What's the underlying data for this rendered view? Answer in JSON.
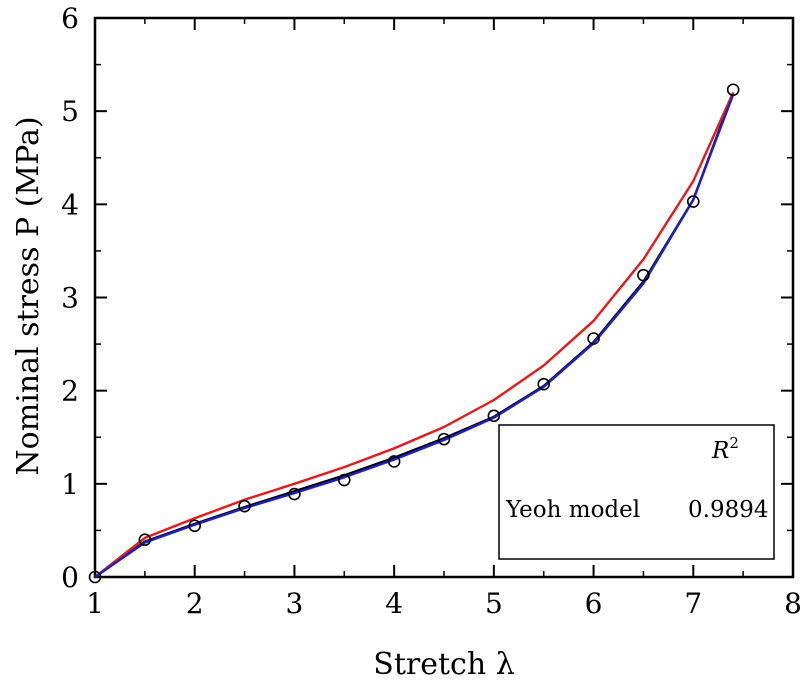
{
  "chart_data": {
    "type": "line",
    "title": "",
    "xlabel": "Stretch λ",
    "ylabel": "Nominal stress P (MPa)",
    "xlim": [
      1,
      8
    ],
    "ylim": [
      0,
      6
    ],
    "xticks": [
      "1",
      "2",
      "3",
      "4",
      "5",
      "6",
      "7",
      "8"
    ],
    "yticks": [
      "0",
      "1",
      "2",
      "3",
      "4",
      "5",
      "6"
    ],
    "grid": false,
    "series": [
      {
        "name": "",
        "kind": "markers",
        "marker": "open-circle",
        "color": "#000000",
        "x": [
          1.0,
          1.5,
          2.0,
          2.5,
          3.0,
          3.5,
          4.0,
          4.5,
          5.0,
          5.5,
          6.0,
          6.5,
          7.0,
          7.4
        ],
        "y": [
          0.0,
          0.4,
          0.55,
          0.76,
          0.89,
          1.04,
          1.24,
          1.48,
          1.73,
          2.07,
          2.56,
          3.24,
          4.03,
          5.23
        ]
      },
      {
        "name": "",
        "kind": "line",
        "color": "#000000",
        "x": [
          1.0,
          1.5,
          2.0,
          2.5,
          3.0,
          3.5,
          4.0,
          4.5,
          5.0,
          5.5,
          6.0,
          6.5,
          7.0,
          7.4
        ],
        "y": [
          0.0,
          0.38,
          0.57,
          0.75,
          0.92,
          1.09,
          1.28,
          1.49,
          1.72,
          2.05,
          2.52,
          3.17,
          4.05,
          5.2
        ]
      },
      {
        "name": "",
        "kind": "line",
        "color": "#e41a1c",
        "x": [
          1.0,
          1.5,
          2.0,
          2.5,
          3.0,
          3.5,
          4.0,
          4.5,
          5.0,
          5.5,
          6.0,
          6.5,
          7.0,
          7.4
        ],
        "y": [
          0.0,
          0.42,
          0.63,
          0.83,
          1.0,
          1.18,
          1.38,
          1.61,
          1.9,
          2.27,
          2.75,
          3.41,
          4.25,
          5.2
        ]
      },
      {
        "name": "",
        "kind": "line",
        "color": "#1f1fc8",
        "x": [
          1.0,
          1.5,
          2.0,
          2.5,
          3.0,
          3.5,
          4.0,
          4.5,
          5.0,
          5.5,
          6.0,
          6.5,
          7.0,
          7.4
        ],
        "y": [
          0.0,
          0.37,
          0.56,
          0.74,
          0.9,
          1.07,
          1.26,
          1.47,
          1.71,
          2.04,
          2.51,
          3.15,
          4.05,
          5.18
        ]
      }
    ],
    "legend": {
      "placement": "bottom-right",
      "header": "R",
      "header_sup": "2",
      "rows": [
        {
          "label": "Yeoh model",
          "value": "0.9894"
        }
      ]
    }
  }
}
